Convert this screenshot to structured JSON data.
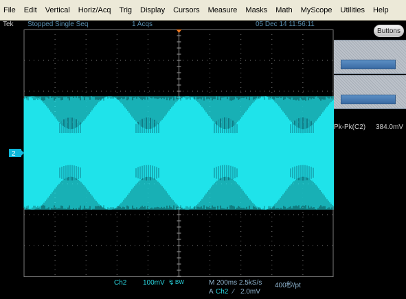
{
  "menu": {
    "items": [
      "File",
      "Edit",
      "Vertical",
      "Horiz/Acq",
      "Trig",
      "Display",
      "Cursors",
      "Measure",
      "Masks",
      "Math",
      "MyScope",
      "Utilities",
      "Help"
    ]
  },
  "status": {
    "brand": "Tek",
    "state": "Stopped  Single Seq",
    "acqs": "1 Acqs",
    "datetime": "05 Dec 14 11:56:11"
  },
  "panel": {
    "buttons_label": "Buttons",
    "measurement": {
      "label": "Pk-Pk(C2)",
      "value": "384.0mV"
    }
  },
  "channel_marker": "2",
  "readouts": {
    "channel": "Ch2",
    "scale": "100mV",
    "bw_label": "BW",
    "bw_icon": "bandwidth-limit-icon",
    "timebase": "M 200ms 2.5kS/s",
    "points": "400秒/pt",
    "trigger": {
      "source_label": "A",
      "channel": "Ch2",
      "slope": "∕",
      "level": "2.0mV"
    }
  },
  "colors": {
    "trace": "#1fe3ea",
    "grid": "#7a7a7a",
    "marker": "#0fb7d9",
    "trigger_marker": "#f07a22"
  },
  "waveform": {
    "modulation_periods_visible": 4,
    "envelope_top_fraction": 0.27,
    "envelope_bottom_fraction": 0.73,
    "inner_min_fraction": 0.42
  }
}
